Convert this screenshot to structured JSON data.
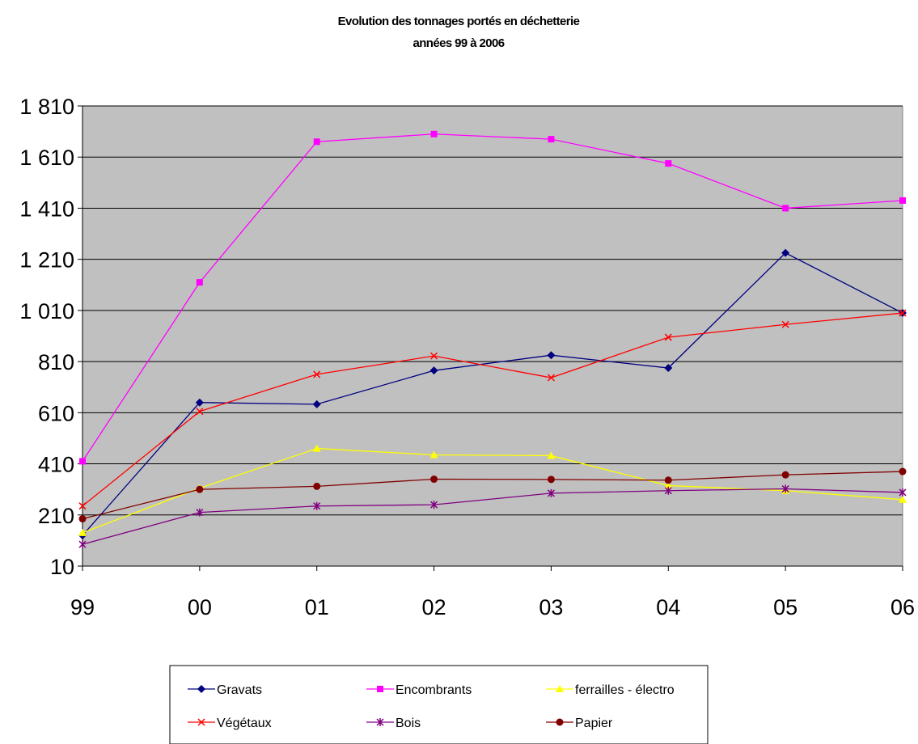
{
  "chart_data": {
    "type": "line",
    "title": "Evolution des tonnages portés en déchetterie",
    "subtitle": "années 99 à 2006",
    "xlabel": "",
    "ylabel": "",
    "x": [
      "99",
      "00",
      "01",
      "02",
      "03",
      "04",
      "05",
      "06"
    ],
    "y_ticks": [
      "10",
      "210",
      "410",
      "610",
      "810",
      "1 010",
      "1 210",
      "1 410",
      "1 610",
      "1 810"
    ],
    "ylim": [
      10,
      1810
    ],
    "grid": true,
    "plot_background": "#c0c0c0",
    "legend_position": "bottom",
    "series": [
      {
        "name": "Gravats",
        "color": "#000080",
        "marker": "diamond",
        "values": [
          130,
          650,
          643,
          775,
          835,
          785,
          1235,
          1000
        ]
      },
      {
        "name": "Encombrants",
        "color": "#ff00ff",
        "marker": "square",
        "values": [
          420,
          1120,
          1670,
          1700,
          1680,
          1585,
          1410,
          1440
        ]
      },
      {
        "name": "ferrailles - électro",
        "color": "#ffff00",
        "marker": "triangle",
        "values": [
          140,
          315,
          470,
          445,
          442,
          325,
          305,
          270
        ]
      },
      {
        "name": "Végétaux",
        "color": "#ff0000",
        "marker": "x",
        "values": [
          245,
          615,
          760,
          832,
          747,
          905,
          955,
          1000
        ]
      },
      {
        "name": "Bois",
        "color": "#800080",
        "marker": "asterisk",
        "values": [
          95,
          220,
          245,
          250,
          295,
          305,
          312,
          298
        ]
      },
      {
        "name": "Papier",
        "color": "#800000",
        "marker": "circle",
        "values": [
          195,
          310,
          322,
          350,
          349,
          346,
          367,
          380
        ]
      }
    ]
  }
}
